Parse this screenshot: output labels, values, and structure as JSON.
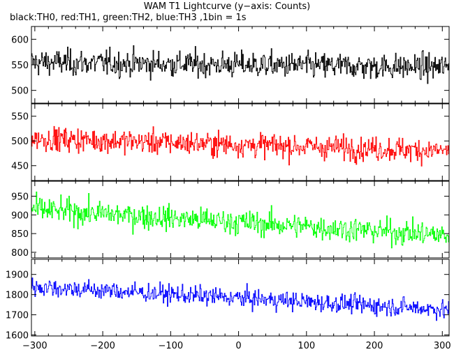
{
  "title": "WAM T1 Lightcurve (y−axis: Counts)",
  "subtitle": "black:TH0, red:TH1, green:TH2, blue:TH3 ,1bin = 1s",
  "chart_data": {
    "type": "line",
    "xlim": [
      -305,
      310
    ],
    "x_ticks": [
      -300,
      -200,
      -100,
      0,
      100,
      200,
      300
    ],
    "x_tick_labels": [
      "−300",
      "−200",
      "−100",
      "0",
      "100",
      "200",
      "300"
    ],
    "bin_seconds": 1,
    "panels": [
      {
        "name": "TH0",
        "color": "#000000",
        "ylim": [
          475,
          625
        ],
        "y_ticks": [
          500,
          550,
          600
        ],
        "y_tick_labels": [
          "500",
          "550",
          "600"
        ],
        "mean_start": 555,
        "mean_end": 545,
        "noise": 23
      },
      {
        "name": "TH1",
        "color": "#ff0000",
        "ylim": [
          420,
          575
        ],
        "y_ticks": [
          450,
          500,
          550
        ],
        "y_tick_labels": [
          "450",
          "500",
          "550"
        ],
        "mean_start": 505,
        "mean_end": 480,
        "noise": 22
      },
      {
        "name": "TH2",
        "color": "#00ff00",
        "ylim": [
          785,
          990
        ],
        "y_ticks": [
          800,
          850,
          900,
          950
        ],
        "y_tick_labels": [
          "800",
          "850",
          "900",
          "950"
        ],
        "mean_start": 915,
        "mean_end": 845,
        "noise": 30
      },
      {
        "name": "TH3",
        "color": "#0000ff",
        "ylim": [
          1595,
          1975
        ],
        "y_ticks": [
          1600,
          1700,
          1800,
          1900
        ],
        "y_tick_labels": [
          "1600",
          "1700",
          "1800",
          "1900"
        ],
        "mean_start": 1840,
        "mean_end": 1725,
        "noise": 42
      }
    ]
  }
}
